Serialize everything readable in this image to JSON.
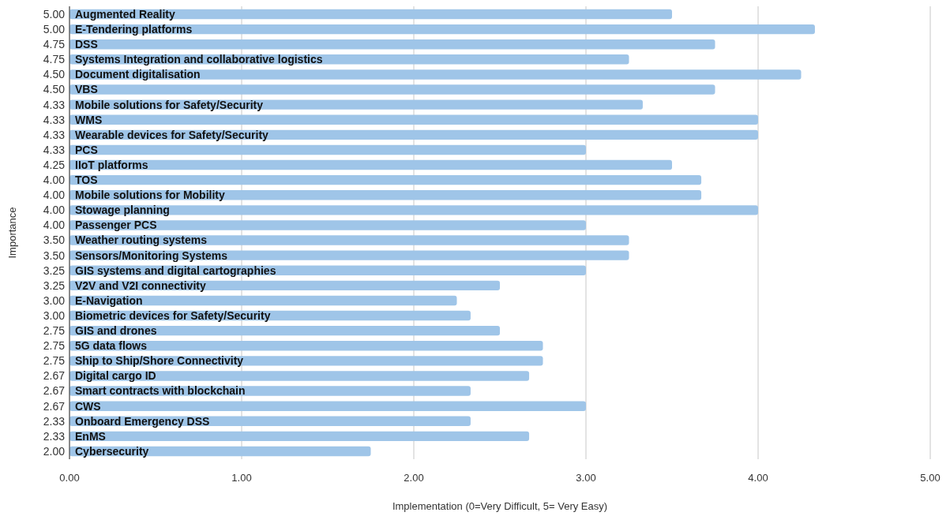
{
  "chart_data": {
    "type": "bar",
    "orientation": "horizontal",
    "xlabel": "Implementation (0=Very Difficult, 5= Very Easy)",
    "ylabel": "Importance",
    "categories": [
      "5.00",
      "5.00",
      "4.75",
      "4.75",
      "4.50",
      "4.50",
      "4.33",
      "4.33",
      "4.33",
      "4.33",
      "4.25",
      "4.00",
      "4.00",
      "4.00",
      "4.00",
      "3.50",
      "3.50",
      "3.25",
      "3.25",
      "3.00",
      "3.00",
      "2.75",
      "2.75",
      "2.75",
      "2.67",
      "2.67",
      "2.67",
      "2.33",
      "2.33",
      "2.00"
    ],
    "values": [
      3.5,
      4.33,
      3.75,
      3.25,
      4.25,
      3.75,
      3.33,
      4.0,
      4.0,
      3.0,
      3.5,
      3.67,
      3.67,
      4.0,
      3.0,
      3.25,
      3.25,
      3.0,
      2.5,
      2.25,
      2.33,
      2.5,
      2.75,
      2.75,
      2.67,
      2.33,
      3.0,
      2.33,
      2.67,
      1.75
    ],
    "color": "#9fc5e8",
    "annotations": [
      "Augmented Reality",
      "E-Tendering platforms",
      "DSS",
      "Systems Integration and collaborative logistics",
      "Document digitalisation",
      "VBS",
      "Mobile solutions for Safety/Security",
      "WMS",
      "Wearable devices for Safety/Security",
      "PCS",
      "IIoT platforms",
      "TOS",
      "Mobile solutions for Mobility",
      "Stowage planning",
      "Passenger PCS",
      "Weather routing systems",
      "Sensors/Monitoring Systems",
      "GIS systems and digital cartographies",
      "V2V and V2I connectivity",
      "E-Navigation",
      "Biometric devices for Safety/Security",
      "GIS and drones",
      "5G data flows",
      "Ship to Ship/Shore Connectivity",
      "Digital cargo ID",
      "Smart contracts with blockchain",
      "CWS",
      "Onboard Emergency DSS",
      "EnMS",
      "Cybersecurity"
    ],
    "xlim": [
      0,
      5
    ],
    "xticks": [
      {
        "value": 0,
        "label": "0.00"
      },
      {
        "value": 1,
        "label": "1.00"
      },
      {
        "value": 2,
        "label": "2.00"
      },
      {
        "value": 3,
        "label": "3.00"
      },
      {
        "value": 4,
        "label": "4.00"
      },
      {
        "value": 5,
        "label": "5.00"
      }
    ],
    "grid": "x"
  }
}
